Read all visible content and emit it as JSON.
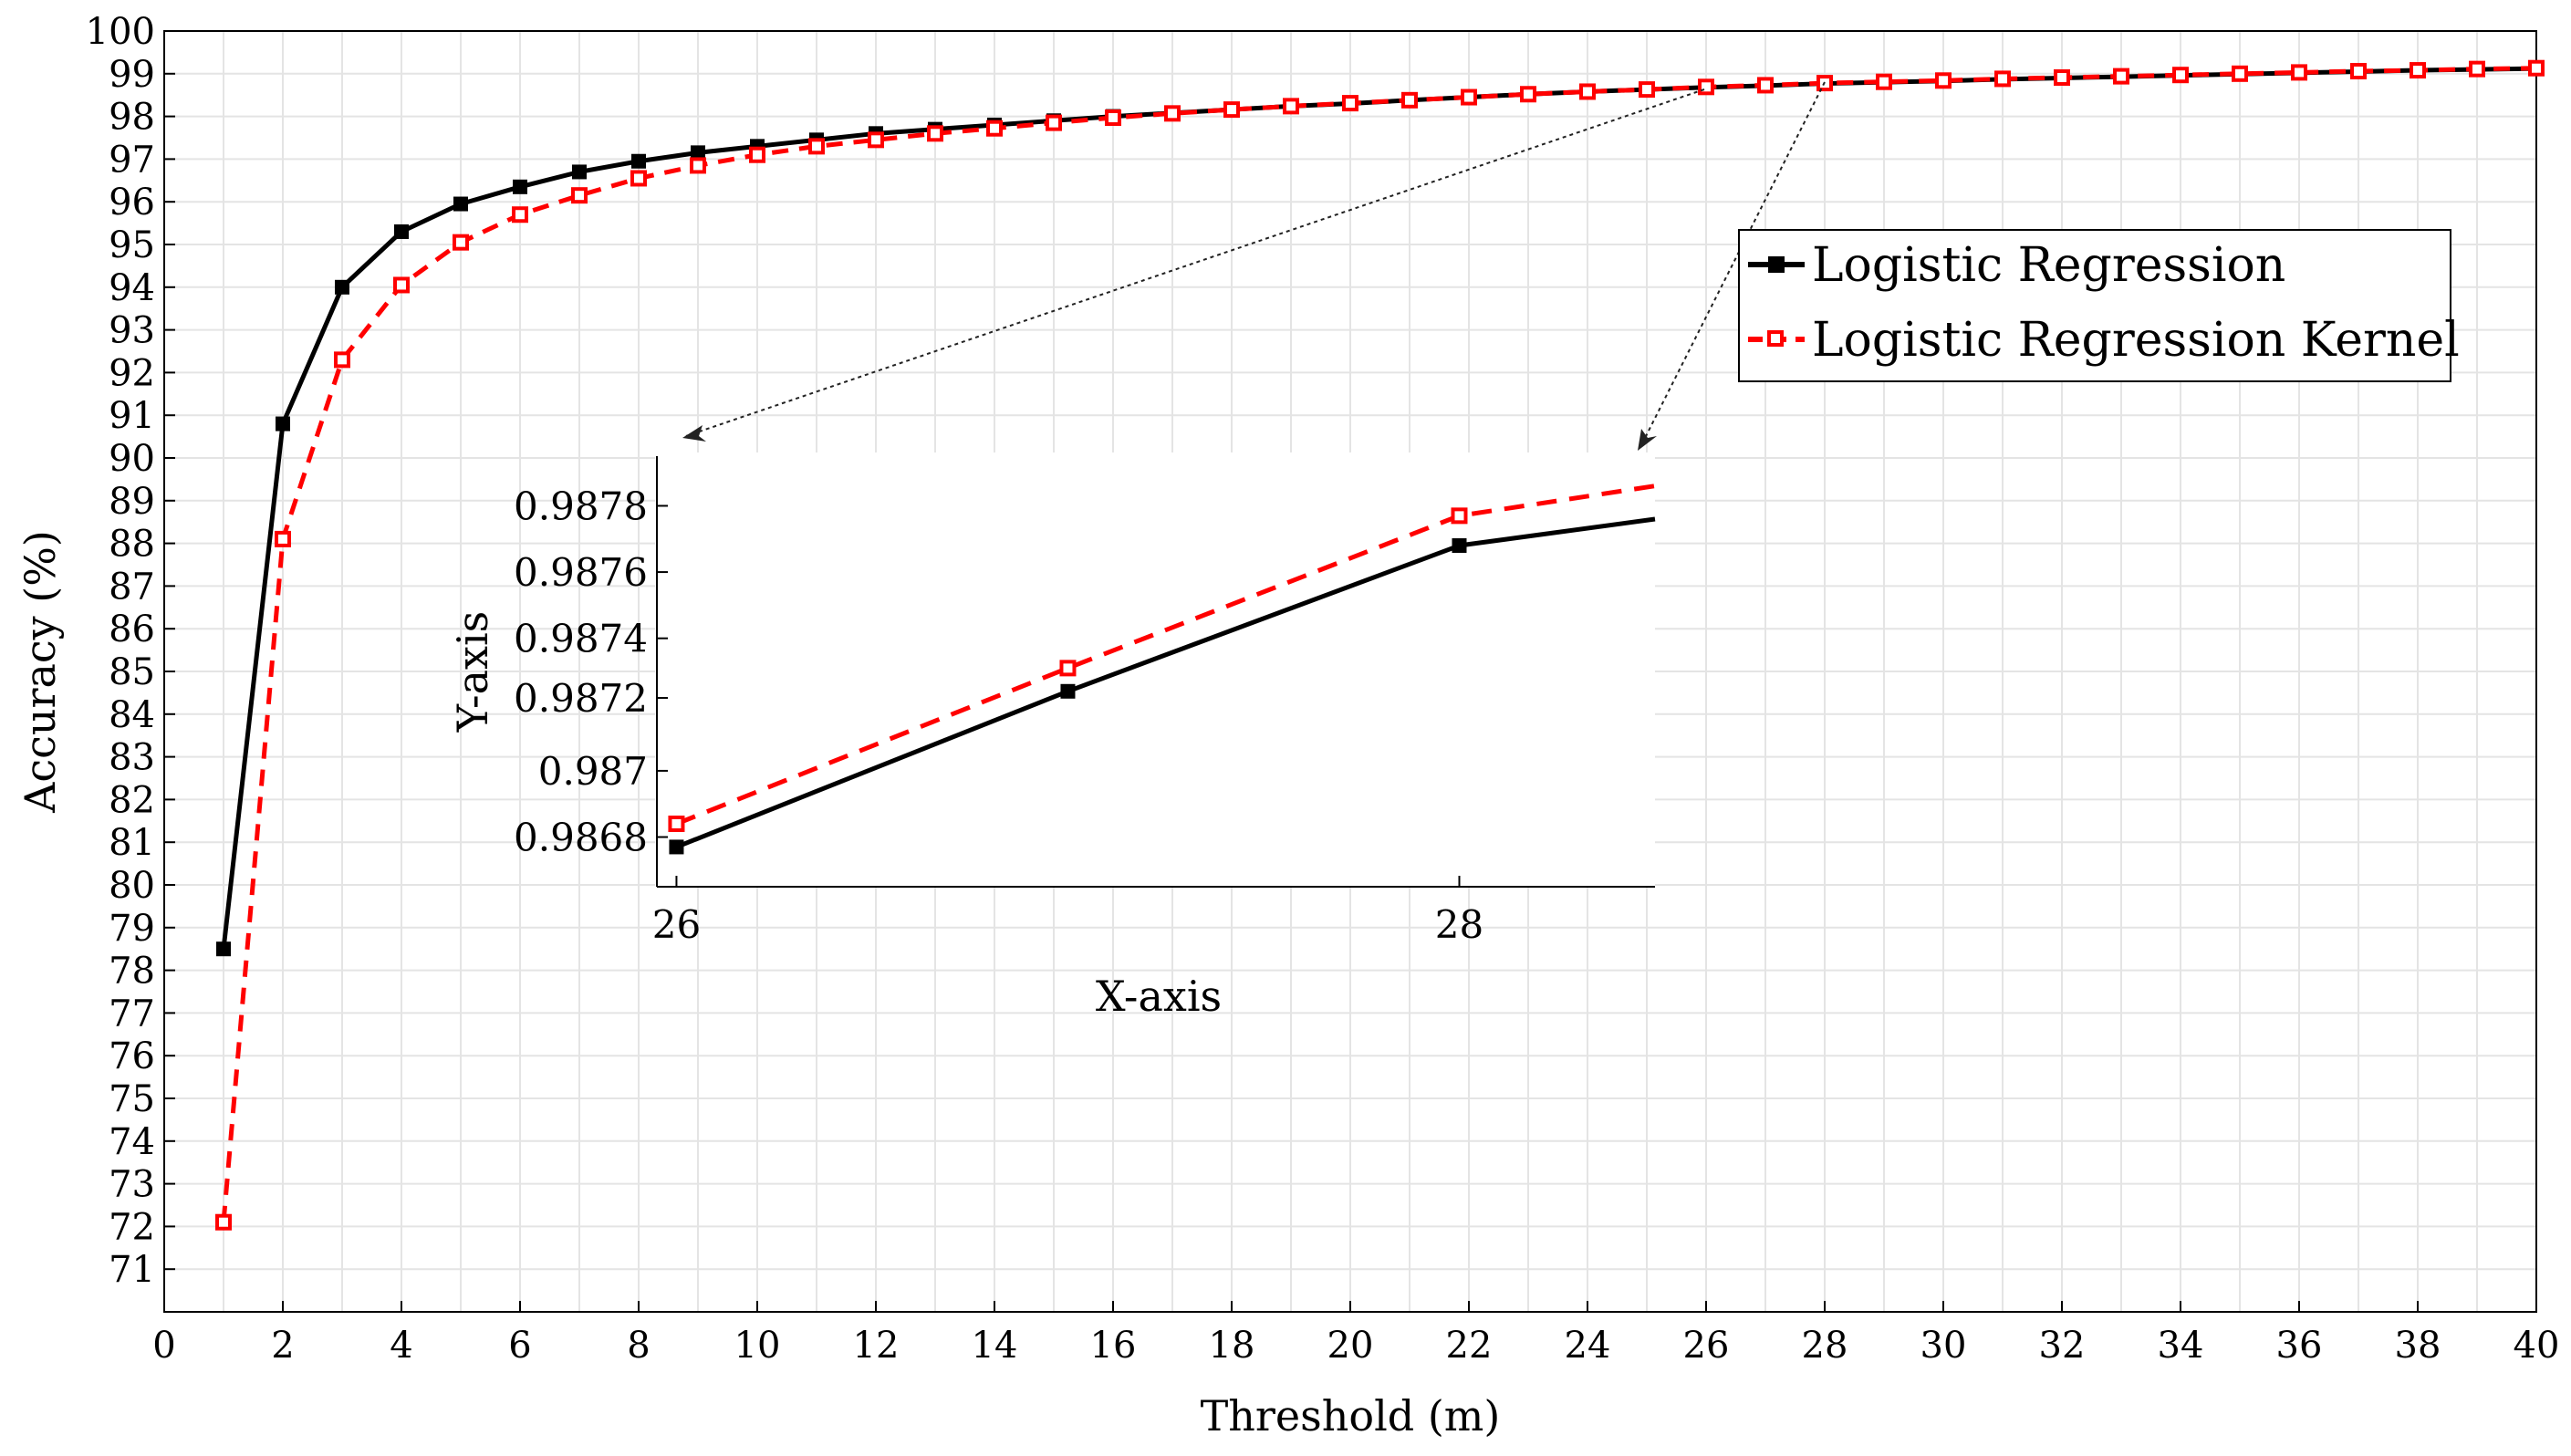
{
  "chart_data": [
    {
      "type": "line",
      "title": "",
      "xlabel": "Threshold (m)",
      "ylabel": "Accuracy (%)",
      "xlim": [
        0,
        40
      ],
      "ylim": [
        70,
        100
      ],
      "grid": true,
      "legend_position": "top-right",
      "x_ticks": [
        "0",
        "2",
        "4",
        "6",
        "8",
        "10",
        "12",
        "14",
        "16",
        "18",
        "20",
        "22",
        "24",
        "26",
        "28",
        "30",
        "32",
        "34",
        "36",
        "38",
        "40"
      ],
      "y_ticks": [
        "71",
        "72",
        "73",
        "74",
        "75",
        "76",
        "77",
        "78",
        "79",
        "80",
        "81",
        "82",
        "83",
        "84",
        "85",
        "86",
        "87",
        "88",
        "89",
        "90",
        "91",
        "92",
        "93",
        "94",
        "95",
        "96",
        "97",
        "98",
        "99",
        "100"
      ],
      "x": [
        1,
        2,
        3,
        4,
        5,
        6,
        7,
        8,
        9,
        10,
        11,
        12,
        13,
        14,
        15,
        16,
        17,
        18,
        19,
        20,
        21,
        22,
        23,
        24,
        25,
        26,
        27,
        28,
        29,
        30,
        31,
        32,
        33,
        34,
        35,
        36,
        37,
        38,
        39,
        40
      ],
      "series": [
        {
          "name": "Logistic Regression",
          "color": "#000000",
          "line_style": "solid",
          "marker": "filled-square",
          "values": [
            78.5,
            90.8,
            94.0,
            95.3,
            95.95,
            96.35,
            96.7,
            96.95,
            97.15,
            97.3,
            97.45,
            97.6,
            97.7,
            97.8,
            97.9,
            98.0,
            98.08,
            98.16,
            98.24,
            98.3,
            98.38,
            98.45,
            98.52,
            98.58,
            98.63,
            98.68,
            98.72,
            98.77,
            98.8,
            98.83,
            98.87,
            98.9,
            98.93,
            98.96,
            98.99,
            99.02,
            99.05,
            99.08,
            99.1,
            99.12
          ]
        },
        {
          "name": "Logistic Regression Kernel",
          "color": "#ff0000",
          "line_style": "dashed",
          "marker": "open-square",
          "values": [
            72.1,
            88.1,
            92.3,
            94.05,
            95.05,
            95.7,
            96.15,
            96.55,
            96.85,
            97.1,
            97.3,
            97.45,
            97.6,
            97.72,
            97.85,
            97.97,
            98.07,
            98.16,
            98.24,
            98.31,
            98.38,
            98.45,
            98.52,
            98.58,
            98.63,
            98.69,
            98.73,
            98.78,
            98.81,
            98.84,
            98.88,
            98.91,
            98.94,
            98.97,
            99.0,
            99.03,
            99.06,
            99.08,
            99.11,
            99.13
          ]
        }
      ]
    },
    {
      "type": "line",
      "title": "",
      "xlabel": "X-axis",
      "ylabel": "Y-axis",
      "xlim": [
        25.95,
        28.5
      ],
      "ylim": [
        0.98665,
        0.98795
      ],
      "grid": false,
      "x_ticks": [
        "26",
        "28"
      ],
      "y_ticks": [
        "0.9868",
        "0.987",
        "0.98722",
        "0.9874",
        "0.9876",
        "0.9878"
      ],
      "y_tick_labels": [
        "0.9868",
        "0.987",
        "0.9872",
        "0.9874",
        "0.9876",
        "0.9878"
      ],
      "x": [
        26,
        27,
        28
      ],
      "series": [
        {
          "name": "Logistic Regression",
          "color": "#000000",
          "line_style": "solid",
          "marker": "filled-square",
          "values": [
            0.98677,
            0.98724,
            0.98768
          ],
          "extension_value_at_xmax": 0.98776
        },
        {
          "name": "Logistic Regression Kernel",
          "color": "#ff0000",
          "line_style": "dashed",
          "marker": "open-square",
          "values": [
            0.98684,
            0.98731,
            0.98777
          ],
          "extension_value_at_xmax": 0.98786
        }
      ]
    }
  ],
  "legend": {
    "items": [
      {
        "label": "Logistic Regression",
        "color": "#000000"
      },
      {
        "label": "Logistic Regression Kernel",
        "color": "#ff0000"
      }
    ]
  }
}
